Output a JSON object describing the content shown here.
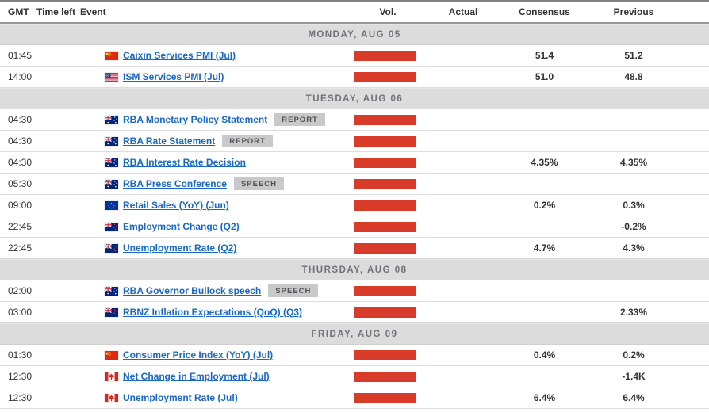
{
  "table": {
    "headers": {
      "gmt": "GMT",
      "time_left": "Time left",
      "event": "Event",
      "vol": "Vol.",
      "actual": "Actual",
      "consensus": "Consensus",
      "previous": "Previous"
    }
  },
  "colors": {
    "volatility_bar": "#d93b2b",
    "event_link": "#1a68c2",
    "day_band_bg": "#dcdcdc",
    "day_band_text": "#71717a",
    "tag_bg": "#c9c9c9",
    "tag_text": "#52525a"
  },
  "days": [
    {
      "label": "MONDAY, AUG 05",
      "events": [
        {
          "gmt": "01:45",
          "time_left": "",
          "flag": "china",
          "event": "Caixin Services PMI (Jul)",
          "tag": "",
          "vol": "high",
          "actual": "",
          "consensus": "51.4",
          "previous": "51.2"
        },
        {
          "gmt": "14:00",
          "time_left": "",
          "flag": "united-states",
          "event": "ISM Services PMI (Jul)",
          "tag": "",
          "vol": "high",
          "actual": "",
          "consensus": "51.0",
          "previous": "48.8"
        }
      ]
    },
    {
      "label": "TUESDAY, AUG 06",
      "events": [
        {
          "gmt": "04:30",
          "time_left": "",
          "flag": "australia",
          "event": "RBA Monetary Policy Statement",
          "tag": "REPORT",
          "vol": "high",
          "actual": "",
          "consensus": "",
          "previous": ""
        },
        {
          "gmt": "04:30",
          "time_left": "",
          "flag": "australia",
          "event": "RBA Rate Statement",
          "tag": "REPORT",
          "vol": "high",
          "actual": "",
          "consensus": "",
          "previous": ""
        },
        {
          "gmt": "04:30",
          "time_left": "",
          "flag": "australia",
          "event": "RBA Interest Rate Decision",
          "tag": "",
          "vol": "high",
          "actual": "",
          "consensus": "4.35%",
          "previous": "4.35%"
        },
        {
          "gmt": "05:30",
          "time_left": "",
          "flag": "australia",
          "event": "RBA Press Conference",
          "tag": "SPEECH",
          "vol": "high",
          "actual": "",
          "consensus": "",
          "previous": ""
        },
        {
          "gmt": "09:00",
          "time_left": "",
          "flag": "european-union",
          "event": "Retail Sales (YoY) (Jun)",
          "tag": "",
          "vol": "high",
          "actual": "",
          "consensus": "0.2%",
          "previous": "0.3%"
        },
        {
          "gmt": "22:45",
          "time_left": "",
          "flag": "new-zealand",
          "event": "Employment Change (Q2)",
          "tag": "",
          "vol": "high",
          "actual": "",
          "consensus": "",
          "previous": "-0.2%"
        },
        {
          "gmt": "22:45",
          "time_left": "",
          "flag": "new-zealand",
          "event": "Unemployment Rate (Q2)",
          "tag": "",
          "vol": "high",
          "actual": "",
          "consensus": "4.7%",
          "previous": "4.3%"
        }
      ]
    },
    {
      "label": "THURSDAY, AUG 08",
      "events": [
        {
          "gmt": "02:00",
          "time_left": "",
          "flag": "australia",
          "event": "RBA Governor Bullock speech",
          "tag": "SPEECH",
          "vol": "high",
          "actual": "",
          "consensus": "",
          "previous": ""
        },
        {
          "gmt": "03:00",
          "time_left": "",
          "flag": "new-zealand",
          "event": "RBNZ Inflation Expectations (QoQ) (Q3)",
          "tag": "",
          "vol": "high",
          "actual": "",
          "consensus": "",
          "previous": "2.33%"
        }
      ]
    },
    {
      "label": "FRIDAY, AUG 09",
      "events": [
        {
          "gmt": "01:30",
          "time_left": "",
          "flag": "china",
          "event": "Consumer Price Index (YoY) (Jul)",
          "tag": "",
          "vol": "high",
          "actual": "",
          "consensus": "0.4%",
          "previous": "0.2%"
        },
        {
          "gmt": "12:30",
          "time_left": "",
          "flag": "canada",
          "event": "Net Change in Employment (Jul)",
          "tag": "",
          "vol": "high",
          "actual": "",
          "consensus": "",
          "previous": "-1.4K"
        },
        {
          "gmt": "12:30",
          "time_left": "",
          "flag": "canada",
          "event": "Unemployment Rate (Jul)",
          "tag": "",
          "vol": "high",
          "actual": "",
          "consensus": "6.4%",
          "previous": "6.4%"
        }
      ]
    }
  ]
}
